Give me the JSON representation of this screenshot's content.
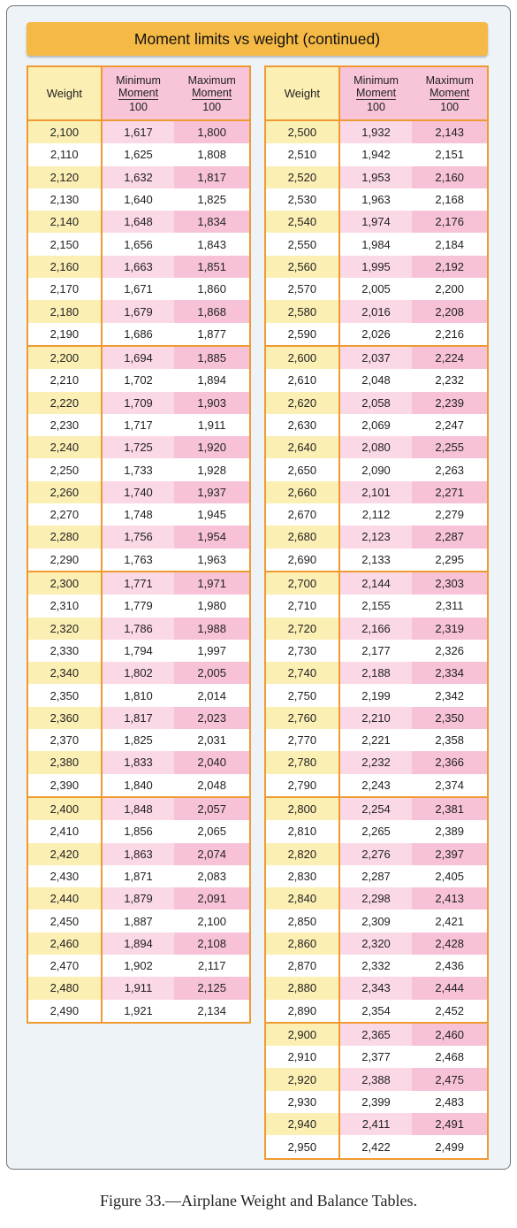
{
  "title": "Moment limits vs weight (continued)",
  "headers": {
    "weight": "Weight",
    "min_label_1": "Minimum",
    "min_label_2": "Moment",
    "max_label_1": "Maximum",
    "max_label_2": "Moment",
    "divisor": "100"
  },
  "left_table": [
    [
      [
        "2,100",
        "1,617",
        "1,800"
      ],
      [
        "2,110",
        "1,625",
        "1,808"
      ],
      [
        "2,120",
        "1,632",
        "1,817"
      ],
      [
        "2,130",
        "1,640",
        "1,825"
      ],
      [
        "2,140",
        "1,648",
        "1,834"
      ],
      [
        "2,150",
        "1,656",
        "1,843"
      ],
      [
        "2,160",
        "1,663",
        "1,851"
      ],
      [
        "2,170",
        "1,671",
        "1,860"
      ],
      [
        "2,180",
        "1,679",
        "1,868"
      ],
      [
        "2,190",
        "1,686",
        "1,877"
      ]
    ],
    [
      [
        "2,200",
        "1,694",
        "1,885"
      ],
      [
        "2,210",
        "1,702",
        "1,894"
      ],
      [
        "2,220",
        "1,709",
        "1,903"
      ],
      [
        "2,230",
        "1,717",
        "1,911"
      ],
      [
        "2,240",
        "1,725",
        "1,920"
      ],
      [
        "2,250",
        "1,733",
        "1,928"
      ],
      [
        "2,260",
        "1,740",
        "1,937"
      ],
      [
        "2,270",
        "1,748",
        "1,945"
      ],
      [
        "2,280",
        "1,756",
        "1,954"
      ],
      [
        "2,290",
        "1,763",
        "1,963"
      ]
    ],
    [
      [
        "2,300",
        "1,771",
        "1,971"
      ],
      [
        "2,310",
        "1,779",
        "1,980"
      ],
      [
        "2,320",
        "1,786",
        "1,988"
      ],
      [
        "2,330",
        "1,794",
        "1,997"
      ],
      [
        "2,340",
        "1,802",
        "2,005"
      ],
      [
        "2,350",
        "1,810",
        "2,014"
      ],
      [
        "2,360",
        "1,817",
        "2,023"
      ],
      [
        "2,370",
        "1,825",
        "2,031"
      ],
      [
        "2,380",
        "1,833",
        "2,040"
      ],
      [
        "2,390",
        "1,840",
        "2,048"
      ]
    ],
    [
      [
        "2,400",
        "1,848",
        "2,057"
      ],
      [
        "2,410",
        "1,856",
        "2,065"
      ],
      [
        "2,420",
        "1,863",
        "2,074"
      ],
      [
        "2,430",
        "1,871",
        "2,083"
      ],
      [
        "2,440",
        "1,879",
        "2,091"
      ],
      [
        "2,450",
        "1,887",
        "2,100"
      ],
      [
        "2,460",
        "1,894",
        "2,108"
      ],
      [
        "2,470",
        "1,902",
        "2,117"
      ],
      [
        "2,480",
        "1,911",
        "2,125"
      ],
      [
        "2,490",
        "1,921",
        "2,134"
      ]
    ]
  ],
  "right_table": [
    [
      [
        "2,500",
        "1,932",
        "2,143"
      ],
      [
        "2,510",
        "1,942",
        "2,151"
      ],
      [
        "2,520",
        "1,953",
        "2,160"
      ],
      [
        "2,530",
        "1,963",
        "2,168"
      ],
      [
        "2,540",
        "1,974",
        "2,176"
      ],
      [
        "2,550",
        "1,984",
        "2,184"
      ],
      [
        "2,560",
        "1,995",
        "2,192"
      ],
      [
        "2,570",
        "2,005",
        "2,200"
      ],
      [
        "2,580",
        "2,016",
        "2,208"
      ],
      [
        "2,590",
        "2,026",
        "2,216"
      ]
    ],
    [
      [
        "2,600",
        "2,037",
        "2,224"
      ],
      [
        "2,610",
        "2,048",
        "2,232"
      ],
      [
        "2,620",
        "2,058",
        "2,239"
      ],
      [
        "2,630",
        "2,069",
        "2,247"
      ],
      [
        "2,640",
        "2,080",
        "2,255"
      ],
      [
        "2,650",
        "2,090",
        "2,263"
      ],
      [
        "2,660",
        "2,101",
        "2,271"
      ],
      [
        "2,670",
        "2,112",
        "2,279"
      ],
      [
        "2,680",
        "2,123",
        "2,287"
      ],
      [
        "2,690",
        "2,133",
        "2,295"
      ]
    ],
    [
      [
        "2,700",
        "2,144",
        "2,303"
      ],
      [
        "2,710",
        "2,155",
        "2,311"
      ],
      [
        "2,720",
        "2,166",
        "2,319"
      ],
      [
        "2,730",
        "2,177",
        "2,326"
      ],
      [
        "2,740",
        "2,188",
        "2,334"
      ],
      [
        "2,750",
        "2,199",
        "2,342"
      ],
      [
        "2,760",
        "2,210",
        "2,350"
      ],
      [
        "2,770",
        "2,221",
        "2,358"
      ],
      [
        "2,780",
        "2,232",
        "2,366"
      ],
      [
        "2,790",
        "2,243",
        "2,374"
      ]
    ],
    [
      [
        "2,800",
        "2,254",
        "2,381"
      ],
      [
        "2,810",
        "2,265",
        "2,389"
      ],
      [
        "2,820",
        "2,276",
        "2,397"
      ],
      [
        "2,830",
        "2,287",
        "2,405"
      ],
      [
        "2,840",
        "2,298",
        "2,413"
      ],
      [
        "2,850",
        "2,309",
        "2,421"
      ],
      [
        "2,860",
        "2,320",
        "2,428"
      ],
      [
        "2,870",
        "2,332",
        "2,436"
      ],
      [
        "2,880",
        "2,343",
        "2,444"
      ],
      [
        "2,890",
        "2,354",
        "2,452"
      ]
    ],
    [
      [
        "2,900",
        "2,365",
        "2,460"
      ],
      [
        "2,910",
        "2,377",
        "2,468"
      ],
      [
        "2,920",
        "2,388",
        "2,475"
      ],
      [
        "2,930",
        "2,399",
        "2,483"
      ],
      [
        "2,940",
        "2,411",
        "2,491"
      ],
      [
        "2,950",
        "2,422",
        "2,499"
      ]
    ]
  ],
  "caption": {
    "figure_label": "Figure 33.",
    "text": "—Airplane Weight and Balance Tables."
  }
}
